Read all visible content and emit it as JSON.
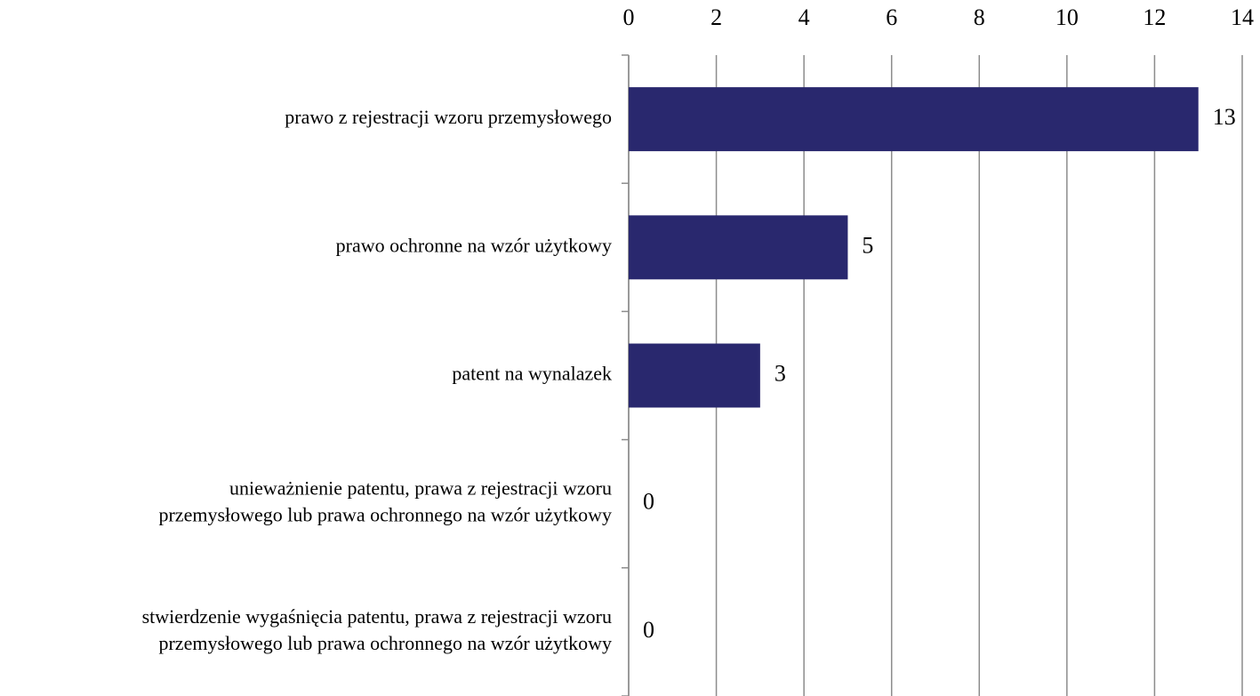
{
  "chart_data": {
    "type": "barh",
    "categories": [
      [
        "prawo z rejestracji wzoru przemysłowego"
      ],
      [
        "prawo ochronne na wzór użytkowy"
      ],
      [
        "patent na wynalazek"
      ],
      [
        "unieważnienie patentu, prawa z rejestracji wzoru",
        "przemysłowego lub prawa ochronnego na wzór użytkowy"
      ],
      [
        "stwierdzenie wygaśnięcia patentu, prawa z rejestracji wzoru",
        "przemysłowego lub prawa ochronnego na wzór użytkowy"
      ]
    ],
    "values": [
      13,
      5,
      3,
      0,
      0
    ],
    "color": "#29286e",
    "xlim": [
      0,
      14
    ],
    "xticks": [
      0,
      2,
      4,
      6,
      8,
      10,
      12,
      14
    ],
    "grid": true
  }
}
